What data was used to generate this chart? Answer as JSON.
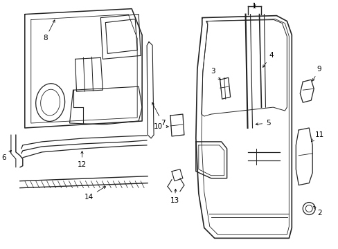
{
  "bg_color": "#ffffff",
  "line_color": "#222222",
  "figsize": [
    4.89,
    3.6
  ],
  "dpi": 100,
  "lw": 0.9
}
